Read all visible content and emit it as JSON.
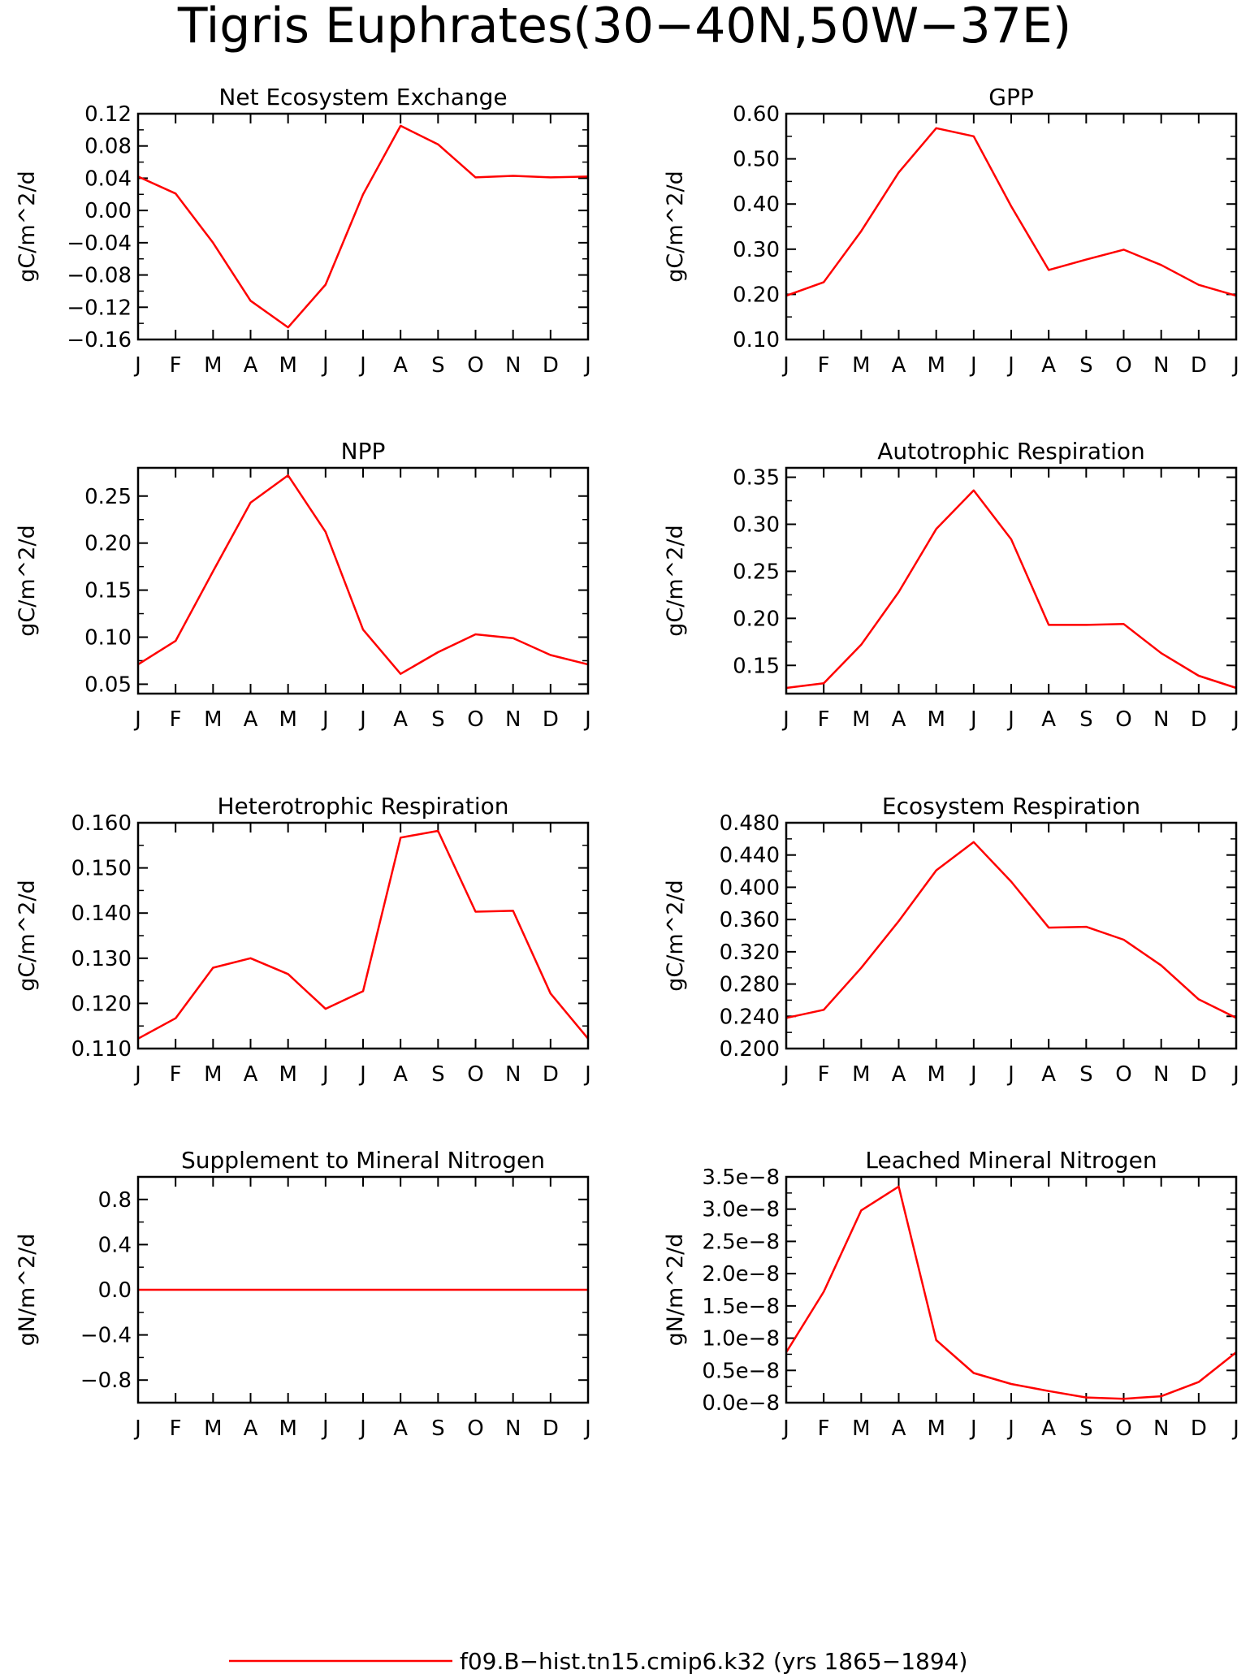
{
  "figure": {
    "title": "Tigris Euphrates(30−40N,50W−37E)",
    "line_color": "#ff0000",
    "legend": {
      "label": "f09.B−hist.tn15.cmip6.k32 (yrs 1865−1894)"
    }
  },
  "chart_data": [
    {
      "type": "line",
      "title": "Net Ecosystem Exchange",
      "ylabel": "gC/m^2/d",
      "xlabel": "",
      "categories": [
        "J",
        "F",
        "M",
        "A",
        "M",
        "J",
        "J",
        "A",
        "S",
        "O",
        "N",
        "D",
        "J"
      ],
      "ylim": [
        -0.16,
        0.12
      ],
      "yticks": [
        -0.16,
        -0.12,
        -0.08,
        -0.04,
        0.0,
        0.04,
        0.08,
        0.12
      ],
      "ytick_labels": [
        "−0.16",
        "−0.12",
        "−0.08",
        "−0.04",
        "0.00",
        "0.04",
        "0.08",
        "0.12"
      ],
      "values": [
        0.042,
        0.021,
        -0.04,
        -0.112,
        -0.145,
        -0.092,
        0.02,
        0.105,
        0.082,
        0.041,
        0.043,
        0.041,
        0.042
      ],
      "grid": false
    },
    {
      "type": "line",
      "title": "GPP",
      "ylabel": "gC/m^2/d",
      "xlabel": "",
      "categories": [
        "J",
        "F",
        "M",
        "A",
        "M",
        "J",
        "J",
        "A",
        "S",
        "O",
        "N",
        "D",
        "J"
      ],
      "ylim": [
        0.1,
        0.6
      ],
      "yticks": [
        0.1,
        0.2,
        0.3,
        0.4,
        0.5,
        0.6
      ],
      "ytick_labels": [
        "0.10",
        "0.20",
        "0.30",
        "0.40",
        "0.50",
        "0.60"
      ],
      "values": [
        0.197,
        0.227,
        0.34,
        0.47,
        0.568,
        0.55,
        0.395,
        0.254,
        0.277,
        0.299,
        0.265,
        0.221,
        0.197
      ],
      "grid": false
    },
    {
      "type": "line",
      "title": "NPP",
      "ylabel": "gC/m^2/d",
      "xlabel": "",
      "categories": [
        "J",
        "F",
        "M",
        "A",
        "M",
        "J",
        "J",
        "A",
        "S",
        "O",
        "N",
        "D",
        "J"
      ],
      "ylim": [
        0.04,
        0.28
      ],
      "yticks": [
        0.05,
        0.1,
        0.15,
        0.2,
        0.25
      ],
      "ytick_labels": [
        "0.05",
        "0.10",
        "0.15",
        "0.20",
        "0.25"
      ],
      "values": [
        0.071,
        0.096,
        0.17,
        0.243,
        0.272,
        0.212,
        0.108,
        0.061,
        0.084,
        0.103,
        0.099,
        0.081,
        0.071
      ],
      "grid": false
    },
    {
      "type": "line",
      "title": "Autotrophic Respiration",
      "ylabel": "gC/m^2/d",
      "xlabel": "",
      "categories": [
        "J",
        "F",
        "M",
        "A",
        "M",
        "J",
        "J",
        "A",
        "S",
        "O",
        "N",
        "D",
        "J"
      ],
      "ylim": [
        0.12,
        0.36
      ],
      "yticks": [
        0.15,
        0.2,
        0.25,
        0.3,
        0.35
      ],
      "ytick_labels": [
        "0.15",
        "0.20",
        "0.25",
        "0.30",
        "0.35"
      ],
      "values": [
        0.126,
        0.131,
        0.172,
        0.228,
        0.295,
        0.336,
        0.284,
        0.193,
        0.193,
        0.194,
        0.163,
        0.139,
        0.126
      ],
      "grid": false
    },
    {
      "type": "line",
      "title": "Heterotrophic Respiration",
      "ylabel": "gC/m^2/d",
      "xlabel": "",
      "categories": [
        "J",
        "F",
        "M",
        "A",
        "M",
        "J",
        "J",
        "A",
        "S",
        "O",
        "N",
        "D",
        "J"
      ],
      "ylim": [
        0.11,
        0.16
      ],
      "yticks": [
        0.11,
        0.12,
        0.13,
        0.14,
        0.15,
        0.16
      ],
      "ytick_labels": [
        "0.110",
        "0.120",
        "0.130",
        "0.140",
        "0.150",
        "0.160"
      ],
      "values": [
        0.1122,
        0.1167,
        0.1279,
        0.13,
        0.1265,
        0.1188,
        0.1227,
        0.1567,
        0.1582,
        0.1403,
        0.1405,
        0.1222,
        0.1122
      ],
      "grid": false
    },
    {
      "type": "line",
      "title": "Ecosystem Respiration",
      "ylabel": "gC/m^2/d",
      "xlabel": "",
      "categories": [
        "J",
        "F",
        "M",
        "A",
        "M",
        "J",
        "J",
        "A",
        "S",
        "O",
        "N",
        "D",
        "J"
      ],
      "ylim": [
        0.2,
        0.48
      ],
      "yticks": [
        0.2,
        0.24,
        0.28,
        0.32,
        0.36,
        0.4,
        0.44,
        0.48
      ],
      "ytick_labels": [
        "0.200",
        "0.240",
        "0.280",
        "0.320",
        "0.360",
        "0.400",
        "0.440",
        "0.480"
      ],
      "values": [
        0.238,
        0.248,
        0.3,
        0.358,
        0.421,
        0.456,
        0.407,
        0.35,
        0.351,
        0.335,
        0.303,
        0.261,
        0.238
      ],
      "grid": false
    },
    {
      "type": "line",
      "title": "Supplement to Mineral Nitrogen",
      "ylabel": "gN/m^2/d",
      "xlabel": "",
      "categories": [
        "J",
        "F",
        "M",
        "A",
        "M",
        "J",
        "J",
        "A",
        "S",
        "O",
        "N",
        "D",
        "J"
      ],
      "ylim": [
        -1.0,
        1.0
      ],
      "yticks": [
        -0.8,
        -0.4,
        0.0,
        0.4,
        0.8
      ],
      "ytick_labels": [
        "−0.8",
        "−0.4",
        "0.0",
        "0.4",
        "0.8"
      ],
      "values": [
        0,
        0,
        0,
        0,
        0,
        0,
        0,
        0,
        0,
        0,
        0,
        0,
        0
      ],
      "grid": false
    },
    {
      "type": "line",
      "title": "Leached Mineral Nitrogen",
      "ylabel": "gN/m^2/d",
      "xlabel": "",
      "categories": [
        "J",
        "F",
        "M",
        "A",
        "M",
        "J",
        "J",
        "A",
        "S",
        "O",
        "N",
        "D",
        "J"
      ],
      "ylim": [
        0.0,
        3.5e-08
      ],
      "yticks": [
        0.0,
        5e-09,
        1e-08,
        1.5e-08,
        2e-08,
        2.5e-08,
        3e-08,
        3.5e-08
      ],
      "ytick_labels": [
        "0.0e−8",
        "0.5e−8",
        "1.0e−8",
        "1.5e−8",
        "2.0e−8",
        "2.5e−8",
        "3.0e−8",
        "3.5e−8"
      ],
      "values": [
        7.8e-09,
        1.72e-08,
        2.98e-08,
        3.35e-08,
        9.7e-09,
        4.6e-09,
        2.9e-09,
        1.8e-09,
        8e-10,
        6e-10,
        1e-09,
        3.2e-09,
        7.8e-09
      ],
      "grid": false
    }
  ]
}
